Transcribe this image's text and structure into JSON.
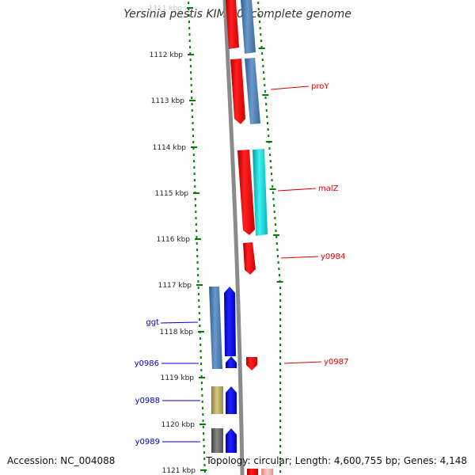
{
  "title": "Yersinia pestis KIM 10, complete genome",
  "footer": {
    "accession": "Accession: NC_004088",
    "summary": "Topology: circular; Length: 4,600,755 bp; Genes: 4,148"
  },
  "ticks": [
    {
      "label": "1111 kbp",
      "faded": true
    },
    {
      "label": "1112 kbp"
    },
    {
      "label": "1113 kbp"
    },
    {
      "label": "1114 kbp"
    },
    {
      "label": "1115 kbp"
    },
    {
      "label": "1116 kbp"
    },
    {
      "label": "1117 kbp"
    },
    {
      "label": "1118 kbp"
    },
    {
      "label": "1119 kbp"
    },
    {
      "label": "1120 kbp"
    },
    {
      "label": "1121 kbp"
    }
  ],
  "gene_labels": [
    {
      "name": "proY",
      "color": "#e00000",
      "side": "right"
    },
    {
      "name": "malZ",
      "color": "#e00000",
      "side": "right"
    },
    {
      "name": "y0984",
      "color": "#e00000",
      "side": "right"
    },
    {
      "name": "y0987",
      "color": "#e00000",
      "side": "right"
    },
    {
      "name": "ggt",
      "color": "#0000d0",
      "side": "left"
    },
    {
      "name": "y0986",
      "color": "#0000d0",
      "side": "left"
    },
    {
      "name": "y0988",
      "color": "#0000d0",
      "side": "left"
    },
    {
      "name": "y0989",
      "color": "#0000d0",
      "side": "left"
    }
  ],
  "colors": {
    "forward_gene": "#ff0000",
    "reverse_gene": "#0000ff",
    "steel_blue_gene": "#4a7fb5",
    "cyan_gene": "#00d0d0",
    "olive_gene": "#b8a860",
    "grey_gene": "#606060",
    "backbone": "#888888",
    "tick_marks": "#008000"
  }
}
